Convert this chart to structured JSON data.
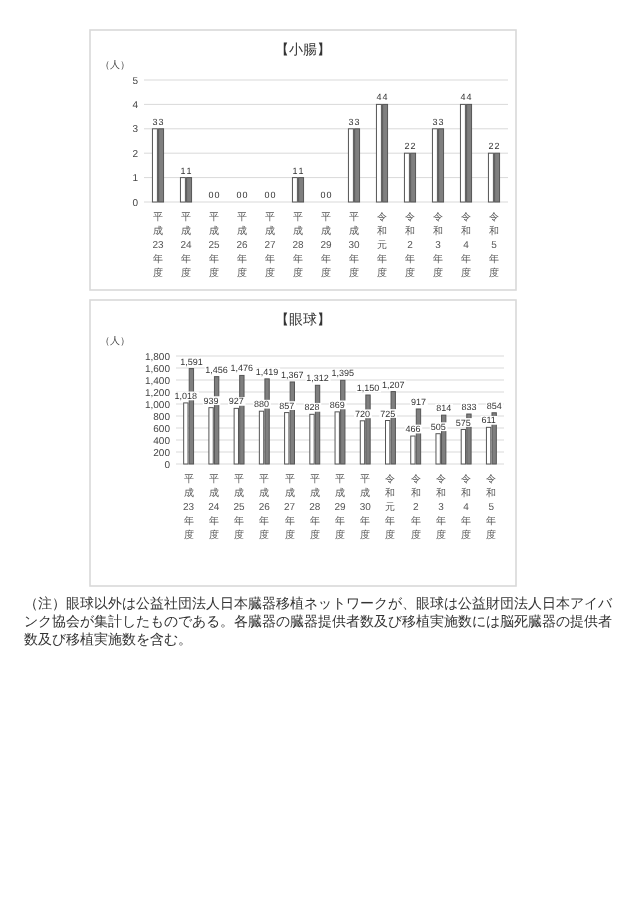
{
  "chart_data": [
    {
      "type": "bar",
      "title": "【小腸】",
      "ylabel": "（人）",
      "categories": [
        "平成23年度",
        "平成24年度",
        "平成25年度",
        "平成26年度",
        "平成27年度",
        "平成28年度",
        "平成29年度",
        "平成30年度",
        "令和元年度",
        "令和2年度",
        "令和3年度",
        "令和4年度",
        "令和5年度"
      ],
      "series": [
        {
          "color": "#ffffff",
          "values": [
            3,
            1,
            0,
            0,
            0,
            1,
            0,
            3,
            4,
            2,
            3,
            4,
            2
          ]
        },
        {
          "color": "#7f7f7f",
          "values": [
            3,
            1,
            0,
            0,
            0,
            1,
            0,
            3,
            4,
            2,
            3,
            4,
            2
          ]
        }
      ],
      "ylim": [
        0,
        5
      ],
      "yticks": [
        0,
        1,
        2,
        3,
        4,
        5
      ],
      "grid": "y",
      "data_labels": true
    },
    {
      "type": "bar",
      "title": "【眼球】",
      "ylabel": "（人）",
      "categories": [
        "平成23年度",
        "平成24年度",
        "平成25年度",
        "平成26年度",
        "平成27年度",
        "平成28年度",
        "平成29年度",
        "平成30年度",
        "令和元年度",
        "令和2年度",
        "令和3年度",
        "令和4年度",
        "令和5年度"
      ],
      "series": [
        {
          "color": "#ffffff",
          "values": [
            1018,
            939,
            927,
            880,
            857,
            828,
            869,
            720,
            725,
            466,
            505,
            575,
            611
          ],
          "value_labels": [
            "1,018",
            "939",
            "927",
            "880",
            "857",
            "828",
            "869",
            "720",
            "725",
            "466",
            "505",
            "575",
            "611"
          ]
        },
        {
          "color": "#7f7f7f",
          "values": [
            1591,
            1456,
            1476,
            1419,
            1367,
            1312,
            1395,
            1150,
            1207,
            917,
            814,
            833,
            854
          ],
          "value_labels": [
            "1,591",
            "1,456",
            "1,476",
            "1,419",
            "1,367",
            "1,312",
            "1,395",
            "1,150",
            "1,207",
            "917",
            "814",
            "833",
            "854"
          ]
        }
      ],
      "ylim": [
        0,
        1800
      ],
      "yticks": [
        0,
        200,
        400,
        600,
        800,
        {
          "value": 1000,
          "label": "1,000"
        },
        {
          "value": 1200,
          "label": "1,200"
        },
        {
          "value": 1400,
          "label": "1,400"
        },
        {
          "value": 1600,
          "label": "1,600"
        },
        {
          "value": 1800,
          "label": "1,800"
        }
      ],
      "grid": "y",
      "annotations": [
        "（注）眼球以外は公益社団法人日本臓器移植ネットワークが、眼球は公益財団法人日本アイバンク協会が集計したものである。各臓器の臓器提供者数及び移植実施数には脳死臓器の提供者数及び移植実施数を含む。"
      ]
    }
  ]
}
